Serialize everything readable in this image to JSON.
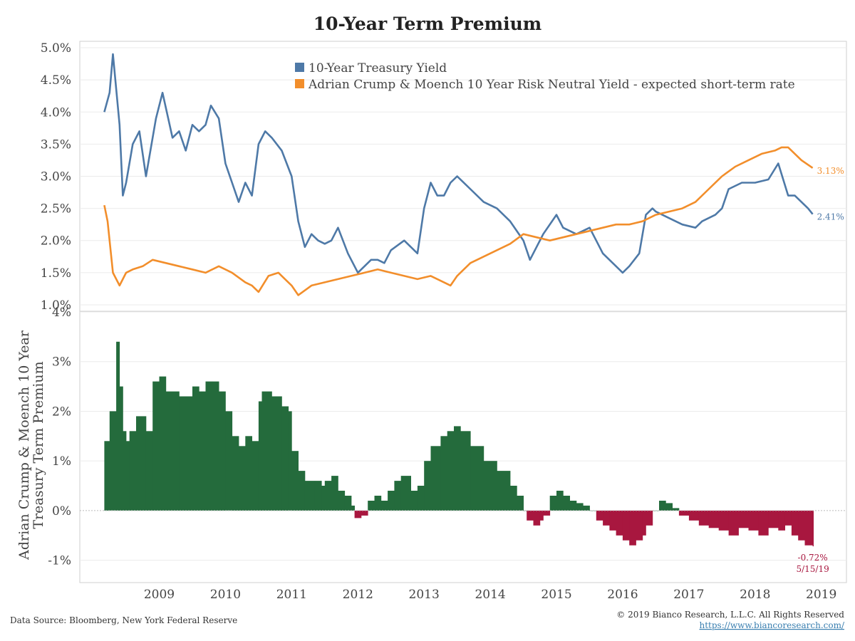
{
  "title": "10-Year Term Premium",
  "footer": {
    "source": "Data Source: Bloomberg, New York Federal Reserve",
    "copyright": "© 2019 Bianco Research, L.L.C. All Rights Reserved",
    "url": "https://www.biancoresearch.com/"
  },
  "colors": {
    "yield": "#4e79a7",
    "neutral": "#f28e2b",
    "positive": "#246b3c",
    "negative": "#a8173f"
  },
  "chart_data": [
    {
      "type": "line",
      "title": "10-Year Term Premium",
      "ylim": [
        0.9,
        5.1
      ],
      "y_ticks": [
        "1.0%",
        "1.5%",
        "2.0%",
        "2.5%",
        "3.0%",
        "3.5%",
        "4.0%",
        "4.5%",
        "5.0%"
      ],
      "x_ticks": [
        "2009",
        "2010",
        "2011",
        "2012",
        "2013",
        "2014",
        "2015",
        "2016",
        "2017",
        "2018",
        "2019"
      ],
      "grid": true,
      "legend_position": "top-center",
      "series": [
        {
          "name": "10-Year Treasury Yield",
          "color": "#4e79a7",
          "end_label": "2.41%",
          "x": [
            2008.67,
            2008.75,
            2008.8,
            2008.9,
            2008.95,
            2009.0,
            2009.1,
            2009.2,
            2009.3,
            2009.45,
            2009.55,
            2009.7,
            2009.8,
            2009.9,
            2010.0,
            2010.1,
            2010.2,
            2010.28,
            2010.4,
            2010.5,
            2010.6,
            2010.7,
            2010.8,
            2010.9,
            2011.0,
            2011.1,
            2011.2,
            2011.35,
            2011.5,
            2011.6,
            2011.7,
            2011.8,
            2011.9,
            2012.0,
            2012.1,
            2012.2,
            2012.35,
            2012.5,
            2012.6,
            2012.7,
            2012.8,
            2012.9,
            2013.0,
            2013.2,
            2013.4,
            2013.5,
            2013.6,
            2013.7,
            2013.8,
            2013.9,
            2014.0,
            2014.2,
            2014.4,
            2014.6,
            2014.8,
            2015.0,
            2015.1,
            2015.3,
            2015.5,
            2015.6,
            2015.8,
            2016.0,
            2016.1,
            2016.2,
            2016.4,
            2016.5,
            2016.6,
            2016.75,
            2016.85,
            2016.95,
            2017.0,
            2017.2,
            2017.4,
            2017.6,
            2017.7,
            2017.9,
            2018.0,
            2018.1,
            2018.3,
            2018.5,
            2018.7,
            2018.85,
            2019.0,
            2019.1,
            2019.2,
            2019.3,
            2019.37
          ],
          "y": [
            4.0,
            4.3,
            4.9,
            3.8,
            2.7,
            2.9,
            3.5,
            3.7,
            3.0,
            3.9,
            4.3,
            3.6,
            3.7,
            3.4,
            3.8,
            3.7,
            3.8,
            4.1,
            3.9,
            3.2,
            2.9,
            2.6,
            2.9,
            2.7,
            3.5,
            3.7,
            3.6,
            3.4,
            3.0,
            2.3,
            1.9,
            2.1,
            2.0,
            1.95,
            2.0,
            2.2,
            1.8,
            1.5,
            1.6,
            1.7,
            1.7,
            1.65,
            1.85,
            2.0,
            1.8,
            2.5,
            2.9,
            2.7,
            2.7,
            2.9,
            3.0,
            2.8,
            2.6,
            2.5,
            2.3,
            2.0,
            1.7,
            2.1,
            2.4,
            2.2,
            2.1,
            2.2,
            2.0,
            1.8,
            1.6,
            1.5,
            1.6,
            1.8,
            2.4,
            2.5,
            2.45,
            2.35,
            2.25,
            2.2,
            2.3,
            2.4,
            2.5,
            2.8,
            2.9,
            2.9,
            2.95,
            3.2,
            2.7,
            2.7,
            2.6,
            2.5,
            2.41
          ]
        },
        {
          "name": "Adrian Crump & Moench 10 Year Risk Neutral Yield - expected short-term rate",
          "color": "#f28e2b",
          "end_label": "3.13%",
          "x": [
            2008.67,
            2008.72,
            2008.8,
            2008.9,
            2009.0,
            2009.1,
            2009.25,
            2009.4,
            2009.6,
            2009.8,
            2010.0,
            2010.2,
            2010.4,
            2010.6,
            2010.8,
            2010.9,
            2011.0,
            2011.15,
            2011.3,
            2011.4,
            2011.5,
            2011.6,
            2011.8,
            2012.0,
            2012.2,
            2012.4,
            2012.6,
            2012.8,
            2013.0,
            2013.2,
            2013.4,
            2013.6,
            2013.8,
            2013.9,
            2014.0,
            2014.2,
            2014.4,
            2014.6,
            2014.8,
            2015.0,
            2015.2,
            2015.4,
            2015.6,
            2015.8,
            2016.0,
            2016.2,
            2016.4,
            2016.6,
            2016.8,
            2017.0,
            2017.2,
            2017.4,
            2017.6,
            2017.8,
            2018.0,
            2018.2,
            2018.4,
            2018.6,
            2018.8,
            2018.9,
            2019.0,
            2019.1,
            2019.2,
            2019.37
          ],
          "y": [
            2.55,
            2.3,
            1.5,
            1.3,
            1.5,
            1.55,
            1.6,
            1.7,
            1.65,
            1.6,
            1.55,
            1.5,
            1.6,
            1.5,
            1.35,
            1.3,
            1.2,
            1.45,
            1.5,
            1.4,
            1.3,
            1.15,
            1.3,
            1.35,
            1.4,
            1.45,
            1.5,
            1.55,
            1.5,
            1.45,
            1.4,
            1.45,
            1.35,
            1.3,
            1.45,
            1.65,
            1.75,
            1.85,
            1.95,
            2.1,
            2.05,
            2.0,
            2.05,
            2.1,
            2.15,
            2.2,
            2.25,
            2.25,
            2.3,
            2.4,
            2.45,
            2.5,
            2.6,
            2.8,
            3.0,
            3.15,
            3.25,
            3.35,
            3.4,
            3.45,
            3.45,
            3.35,
            3.25,
            3.13
          ]
        }
      ]
    },
    {
      "type": "bar",
      "ylabel": "Adrian Crump & Moench 10 Year Treasury Term Premium",
      "ylim": [
        -1.45,
        4.0
      ],
      "y_ticks": [
        "-1%",
        "0%",
        "1%",
        "2%",
        "3%",
        "4%"
      ],
      "x_ticks": [
        "2009",
        "2010",
        "2011",
        "2012",
        "2013",
        "2014",
        "2015",
        "2016",
        "2017",
        "2018",
        "2019"
      ],
      "annotation": {
        "value": "-0.72%",
        "date": "5/15/19"
      },
      "x": [
        2008.67,
        2008.75,
        2008.85,
        2008.9,
        2008.95,
        2009.0,
        2009.05,
        2009.15,
        2009.3,
        2009.4,
        2009.5,
        2009.6,
        2009.8,
        2010.0,
        2010.1,
        2010.2,
        2010.3,
        2010.4,
        2010.5,
        2010.6,
        2010.7,
        2010.8,
        2010.9,
        2011.0,
        2011.05,
        2011.2,
        2011.35,
        2011.45,
        2011.5,
        2011.6,
        2011.7,
        2011.85,
        2011.95,
        2012.0,
        2012.1,
        2012.2,
        2012.3,
        2012.4,
        2012.45,
        2012.55,
        2012.65,
        2012.75,
        2012.85,
        2012.95,
        2013.05,
        2013.15,
        2013.3,
        2013.4,
        2013.5,
        2013.6,
        2013.75,
        2013.85,
        2013.95,
        2014.05,
        2014.2,
        2014.4,
        2014.6,
        2014.8,
        2014.9,
        2015.0,
        2015.05,
        2015.15,
        2015.25,
        2015.3,
        2015.4,
        2015.5,
        2015.6,
        2015.7,
        2015.8,
        2015.9,
        2016.0,
        2016.1,
        2016.2,
        2016.3,
        2016.4,
        2016.5,
        2016.6,
        2016.7,
        2016.8,
        2016.85,
        2016.95,
        2017.05,
        2017.15,
        2017.25,
        2017.35,
        2017.5,
        2017.65,
        2017.8,
        2017.95,
        2018.1,
        2018.25,
        2018.4,
        2018.55,
        2018.7,
        2018.85,
        2018.95,
        2019.05,
        2019.15,
        2019.25,
        2019.37
      ],
      "values": [
        1.4,
        2.0,
        3.4,
        2.5,
        1.6,
        1.4,
        1.6,
        1.9,
        1.6,
        2.6,
        2.7,
        2.4,
        2.3,
        2.5,
        2.4,
        2.6,
        2.6,
        2.4,
        2.0,
        1.5,
        1.3,
        1.5,
        1.4,
        2.2,
        2.4,
        2.3,
        2.1,
        2.0,
        1.2,
        0.8,
        0.6,
        0.6,
        0.5,
        0.6,
        0.7,
        0.4,
        0.3,
        0.1,
        -0.15,
        -0.1,
        0.2,
        0.3,
        0.2,
        0.4,
        0.6,
        0.7,
        0.4,
        0.5,
        1.0,
        1.3,
        1.5,
        1.6,
        1.7,
        1.6,
        1.3,
        1.0,
        0.8,
        0.5,
        0.3,
        0.0,
        -0.2,
        -0.3,
        -0.2,
        -0.1,
        0.3,
        0.4,
        0.3,
        0.2,
        0.15,
        0.1,
        0.0,
        -0.2,
        -0.3,
        -0.4,
        -0.5,
        -0.6,
        -0.7,
        -0.6,
        -0.5,
        -0.3,
        0.0,
        0.2,
        0.15,
        0.05,
        -0.1,
        -0.2,
        -0.3,
        -0.35,
        -0.4,
        -0.5,
        -0.35,
        -0.4,
        -0.5,
        -0.35,
        -0.4,
        -0.3,
        -0.5,
        -0.6,
        -0.7,
        -0.72
      ]
    }
  ]
}
